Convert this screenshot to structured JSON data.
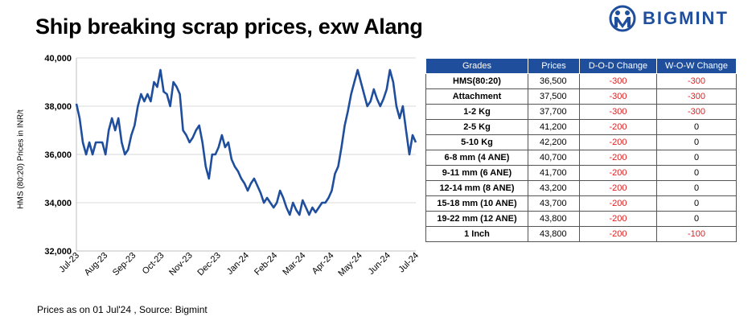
{
  "header": {
    "title": "Ship breaking scrap prices, exw Alang",
    "brand": "BIGMINT"
  },
  "footnote": "Prices as on 01 Jul'24 , Source:  Bigmint",
  "table": {
    "columns": [
      "Grades",
      "Prices",
      "D-O-D Change",
      "W-O-W Change"
    ],
    "rows": [
      {
        "grade": "HMS(80:20)",
        "price": "36,500",
        "dod": "-300",
        "wow": "-300"
      },
      {
        "grade": "Attachment",
        "price": "37,500",
        "dod": "-300",
        "wow": "-300"
      },
      {
        "grade": "1-2 Kg",
        "price": "37,700",
        "dod": "-300",
        "wow": "-300"
      },
      {
        "grade": "2-5 Kg",
        "price": "41,200",
        "dod": "-200",
        "wow": "0"
      },
      {
        "grade": "5-10 Kg",
        "price": "42,200",
        "dod": "-200",
        "wow": "0"
      },
      {
        "grade": "6-8 mm (4 ANE)",
        "price": "40,700",
        "dod": "-200",
        "wow": "0"
      },
      {
        "grade": "9-11 mm (6 ANE)",
        "price": "41,700",
        "dod": "-200",
        "wow": "0"
      },
      {
        "grade": "12-14 mm (8 ANE)",
        "price": "43,200",
        "dod": "-200",
        "wow": "0"
      },
      {
        "grade": "15-18 mm (10 ANE)",
        "price": "43,700",
        "dod": "-200",
        "wow": "0"
      },
      {
        "grade": "19-22 mm (12 ANE)",
        "price": "43,800",
        "dod": "-200",
        "wow": "0"
      },
      {
        "grade": "1 Inch",
        "price": "43,800",
        "dod": "-200",
        "wow": "-100"
      }
    ]
  },
  "colors": {
    "line": "#1f4e9c",
    "header_bg": "#1f4e9c",
    "negative": "#e02020",
    "grid": "#d9d9d9"
  },
  "chart_data": {
    "type": "line",
    "ylabel": "HMS (80:20) Prices in INR/t",
    "ylim": [
      32000,
      40000
    ],
    "yticks": [
      32000,
      34000,
      36000,
      38000,
      40000
    ],
    "ytick_labels": [
      "32,000",
      "34,000",
      "36,000",
      "38,000",
      "40,000"
    ],
    "xticks": [
      "Jul-23",
      "Aug-23",
      "Sep-23",
      "Oct-23",
      "Nov-23",
      "Dec-23",
      "Jan-24",
      "Feb-24",
      "Mar-24",
      "Apr-24",
      "May-24",
      "Jun-24",
      "Jul-24"
    ],
    "grid": "horizontal",
    "series": [
      {
        "values": [
          38100,
          37500,
          36500,
          36000,
          36500,
          36000,
          36500,
          36500,
          36500,
          36000,
          37000,
          37500,
          37000,
          37500,
          36500,
          36000,
          36200,
          36800,
          37200,
          38000,
          38500,
          38200,
          38500,
          38200,
          39000,
          38800,
          39500,
          38600,
          38500,
          38000,
          39000,
          38800,
          38500,
          37000,
          36800,
          36500,
          36700,
          37000,
          37200,
          36500,
          35500,
          35000,
          36000,
          36000,
          36300,
          36800,
          36300,
          36500,
          35800,
          35500,
          35300,
          35000,
          34800,
          34500,
          34800,
          35000,
          34700,
          34400,
          34000,
          34200,
          34000,
          33800,
          34000,
          34500,
          34200,
          33800,
          33500,
          34000,
          33700,
          33500,
          34100,
          33800,
          33500,
          33800,
          33600,
          33800,
          34000,
          34000,
          34200,
          34500,
          35200,
          35500,
          36300,
          37200,
          37800,
          38500,
          39000,
          39500,
          39000,
          38500,
          38000,
          38200,
          38700,
          38300,
          38000,
          38300,
          38700,
          39500,
          39000,
          38000,
          37500,
          38000,
          37000,
          36000,
          36800,
          36500
        ]
      }
    ]
  }
}
